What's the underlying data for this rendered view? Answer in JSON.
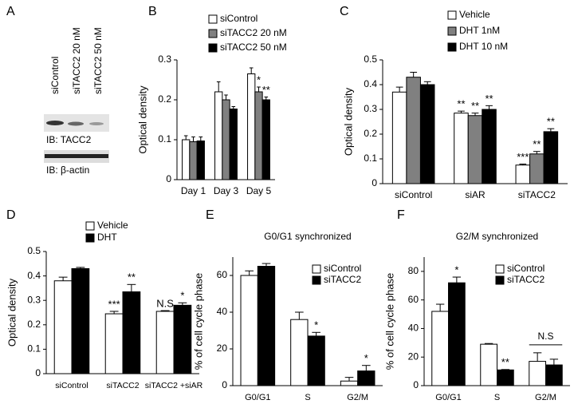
{
  "blot": {
    "panel": "A",
    "lanes": [
      "siControl",
      "siTACC2  20 nM",
      "siTACC2  50 nM"
    ],
    "probes": [
      "IB: TACC2",
      "IB: β-actin"
    ]
  },
  "chart_data": [
    {
      "type": "bar",
      "panel": "B",
      "ylabel": "Optical density",
      "categories": [
        "Day 1",
        "Day 3",
        "Day 5"
      ],
      "ylim": [
        0,
        0.3
      ],
      "yticks": [
        0,
        0.1,
        0.2,
        0.3
      ],
      "series": [
        {
          "name": "siControl",
          "color": "#ffffff",
          "values": [
            0.1,
            0.22,
            0.265
          ],
          "errors": [
            0.01,
            0.025,
            0.015
          ]
        },
        {
          "name": "siTACC2 20 nM",
          "color": "#808080",
          "values": [
            0.095,
            0.2,
            0.22
          ],
          "errors": [
            0.012,
            0.012,
            0.012
          ],
          "significance": [
            null,
            null,
            "*"
          ]
        },
        {
          "name": "siTACC2 50 nM",
          "color": "#000000",
          "values": [
            0.097,
            0.177,
            0.2
          ],
          "errors": [
            0.01,
            0.006,
            0.007
          ],
          "significance": [
            null,
            null,
            "**"
          ]
        }
      ]
    },
    {
      "type": "bar",
      "panel": "C",
      "ylabel": "Optical density",
      "categories": [
        "siControl",
        "siAR",
        "siTACC2"
      ],
      "ylim": [
        0,
        0.5
      ],
      "yticks": [
        0,
        0.1,
        0.2,
        0.3,
        0.4,
        0.5
      ],
      "series": [
        {
          "name": "Vehicle",
          "color": "#ffffff",
          "values": [
            0.37,
            0.285,
            0.075
          ],
          "errors": [
            0.02,
            0.008,
            0.004
          ],
          "significance": [
            null,
            "**",
            "***"
          ]
        },
        {
          "name": "DHT 1nM",
          "color": "#808080",
          "values": [
            0.43,
            0.275,
            0.12
          ],
          "errors": [
            0.02,
            0.01,
            0.01
          ],
          "significance": [
            null,
            "**",
            "**"
          ]
        },
        {
          "name": "DHT 10 nM",
          "color": "#000000",
          "values": [
            0.4,
            0.3,
            0.21
          ],
          "errors": [
            0.012,
            0.015,
            0.012
          ],
          "significance": [
            null,
            "**",
            "**"
          ]
        }
      ]
    },
    {
      "type": "bar",
      "panel": "D",
      "ylabel": "Optical density",
      "categories": [
        "siControl",
        "siTACC2",
        "siTACC2 +siAR"
      ],
      "ylim": [
        0,
        0.5
      ],
      "yticks": [
        0,
        0.1,
        0.2,
        0.3,
        0.4,
        0.5
      ],
      "series": [
        {
          "name": "Vehicle",
          "color": "#ffffff",
          "values": [
            0.38,
            0.245,
            0.255
          ],
          "errors": [
            0.015,
            0.01,
            0.003
          ],
          "significance": [
            null,
            "***",
            "N.S"
          ]
        },
        {
          "name": "DHT",
          "color": "#000000",
          "values": [
            0.43,
            0.335,
            0.28
          ],
          "errors": [
            0.005,
            0.03,
            0.01
          ],
          "significance": [
            null,
            "**",
            "*"
          ]
        }
      ]
    },
    {
      "type": "bar",
      "panel": "E",
      "title": "G0/G1 synchronized",
      "ylabel": "% of cell cycle phase",
      "categories": [
        "G0/G1",
        "S",
        "G2/M"
      ],
      "ylim": [
        0,
        70
      ],
      "yticks": [
        0,
        20,
        40,
        60
      ],
      "series": [
        {
          "name": "siControl",
          "color": "#ffffff",
          "values": [
            60,
            36,
            2.5
          ],
          "errors": [
            2.5,
            4,
            2
          ]
        },
        {
          "name": "siTACC2",
          "color": "#000000",
          "values": [
            65,
            27,
            8
          ],
          "errors": [
            1.5,
            2,
            3
          ],
          "significance": [
            null,
            "*",
            "*"
          ]
        }
      ]
    },
    {
      "type": "bar",
      "panel": "F",
      "title": "G2/M synchronized",
      "ylabel": "% of cell cycle phase",
      "categories": [
        "G0/G1",
        "S",
        "G2/M"
      ],
      "ylim": [
        0,
        90
      ],
      "yticks": [
        0,
        20,
        40,
        60,
        80
      ],
      "group_labels": [
        null,
        null,
        "N.S"
      ],
      "series": [
        {
          "name": "siControl",
          "color": "#ffffff",
          "values": [
            52,
            29,
            17
          ],
          "errors": [
            5,
            0.5,
            6
          ]
        },
        {
          "name": "siTACC2",
          "color": "#000000",
          "values": [
            72,
            11,
            14.5
          ],
          "errors": [
            4,
            0.3,
            4
          ],
          "significance": [
            "*",
            "**",
            null
          ]
        }
      ]
    }
  ]
}
